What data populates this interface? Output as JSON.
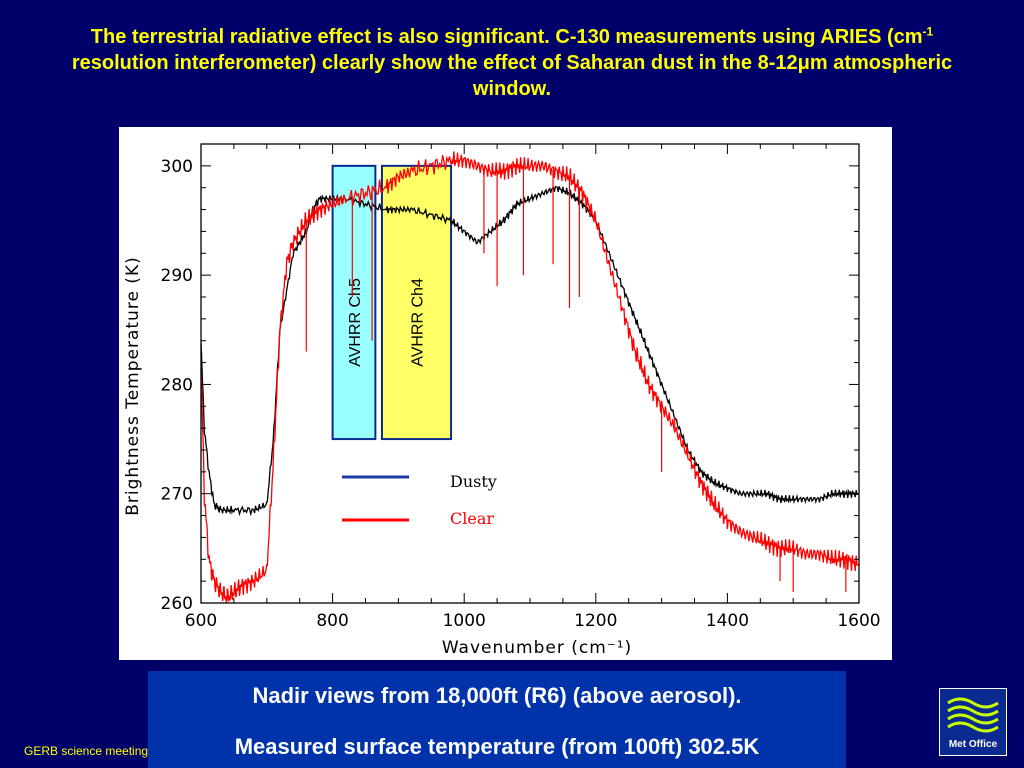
{
  "title": {
    "part1": "The terrestrial radiative effect is also significant. C-130 measurements using ARIES (cm",
    "sup": "-1",
    "part2": " resolution interferometer) clearly show the effect of Saharan dust in the 8-12",
    "mu": "μ",
    "part3": "m atmospheric window."
  },
  "caption": {
    "line1": "Nadir views from 18,000ft (R6) (above aerosol).",
    "line2": "Measured surface temperature (from 100ft) 302.5K"
  },
  "footer": "GERB science meeting",
  "logo": {
    "text": "Met Office"
  },
  "colors": {
    "background": "#00006a",
    "title": "#ffff00",
    "dusty": "#000000",
    "clear": "#ff0000",
    "dusty_legend": "#1a3aa0",
    "ch5": "#99ffff",
    "ch4": "#ffff66",
    "caption_bg": "#0033aa"
  },
  "chart_data": {
    "type": "line",
    "xlabel": "Wavenumber (cm⁻¹)",
    "ylabel": "Brightness Temperature (K)",
    "xlim": [
      600,
      1600
    ],
    "ylim": [
      260,
      302
    ],
    "xticks": [
      600,
      800,
      1000,
      1200,
      1400,
      1600
    ],
    "yticks": [
      260,
      270,
      280,
      290,
      300
    ],
    "legend": {
      "dusty": "Dusty",
      "clear": "Clear",
      "placement": "center"
    },
    "bands": [
      {
        "label": "AVHRR Ch5",
        "x_range": [
          800,
          865
        ],
        "y_range": [
          275,
          300
        ]
      },
      {
        "label": "AVHRR Ch4",
        "x_range": [
          875,
          980
        ],
        "y_range": [
          275,
          300
        ]
      }
    ],
    "series": [
      {
        "name": "Dusty",
        "x": [
          600,
          605,
          612,
          620,
          630,
          650,
          680,
          700,
          710,
          720,
          740,
          760,
          770,
          780,
          800,
          820,
          850,
          880,
          900,
          920,
          950,
          980,
          1000,
          1020,
          1040,
          1060,
          1080,
          1100,
          1120,
          1140,
          1160,
          1180,
          1200,
          1220,
          1240,
          1260,
          1280,
          1300,
          1320,
          1340,
          1360,
          1380,
          1400,
          1420,
          1440,
          1460,
          1480,
          1500,
          1520,
          1540,
          1560,
          1580,
          1600
        ],
        "y": [
          284,
          276,
          272,
          269,
          268.5,
          268.5,
          268.5,
          269,
          275,
          285,
          292,
          294,
          296,
          297,
          297,
          297,
          296.5,
          296,
          296,
          296,
          295.5,
          295,
          294,
          293,
          294,
          295,
          296.5,
          297,
          297.5,
          298,
          297.5,
          296.5,
          295,
          292,
          289,
          286,
          283,
          280,
          277,
          274,
          272,
          271,
          270.5,
          270,
          270,
          270,
          269.5,
          269.5,
          269.5,
          269.5,
          270,
          270,
          270
        ]
      },
      {
        "name": "Clear",
        "x": [
          600,
          605,
          612,
          620,
          630,
          640,
          650,
          660,
          680,
          700,
          710,
          720,
          730,
          740,
          760,
          780,
          800,
          820,
          850,
          880,
          900,
          920,
          950,
          980,
          1000,
          1020,
          1040,
          1060,
          1080,
          1100,
          1120,
          1140,
          1160,
          1180,
          1200,
          1220,
          1240,
          1260,
          1280,
          1300,
          1320,
          1340,
          1360,
          1380,
          1400,
          1420,
          1440,
          1460,
          1480,
          1500,
          1520,
          1540,
          1560,
          1580,
          1600
        ],
        "y": [
          282,
          270,
          264,
          262,
          261,
          260.5,
          261,
          261.5,
          262,
          263,
          273,
          285,
          291,
          293,
          295,
          296,
          296.5,
          297,
          297.5,
          298,
          299,
          299.5,
          300,
          300.5,
          300.5,
          300,
          299.5,
          299.5,
          300,
          300,
          300,
          299.5,
          299,
          297.5,
          295,
          291,
          287,
          283,
          280,
          278,
          276,
          273.5,
          271,
          269,
          267.5,
          266.5,
          266,
          265.5,
          265,
          265,
          264.5,
          264.5,
          264,
          264,
          263.5
        ]
      }
    ]
  }
}
